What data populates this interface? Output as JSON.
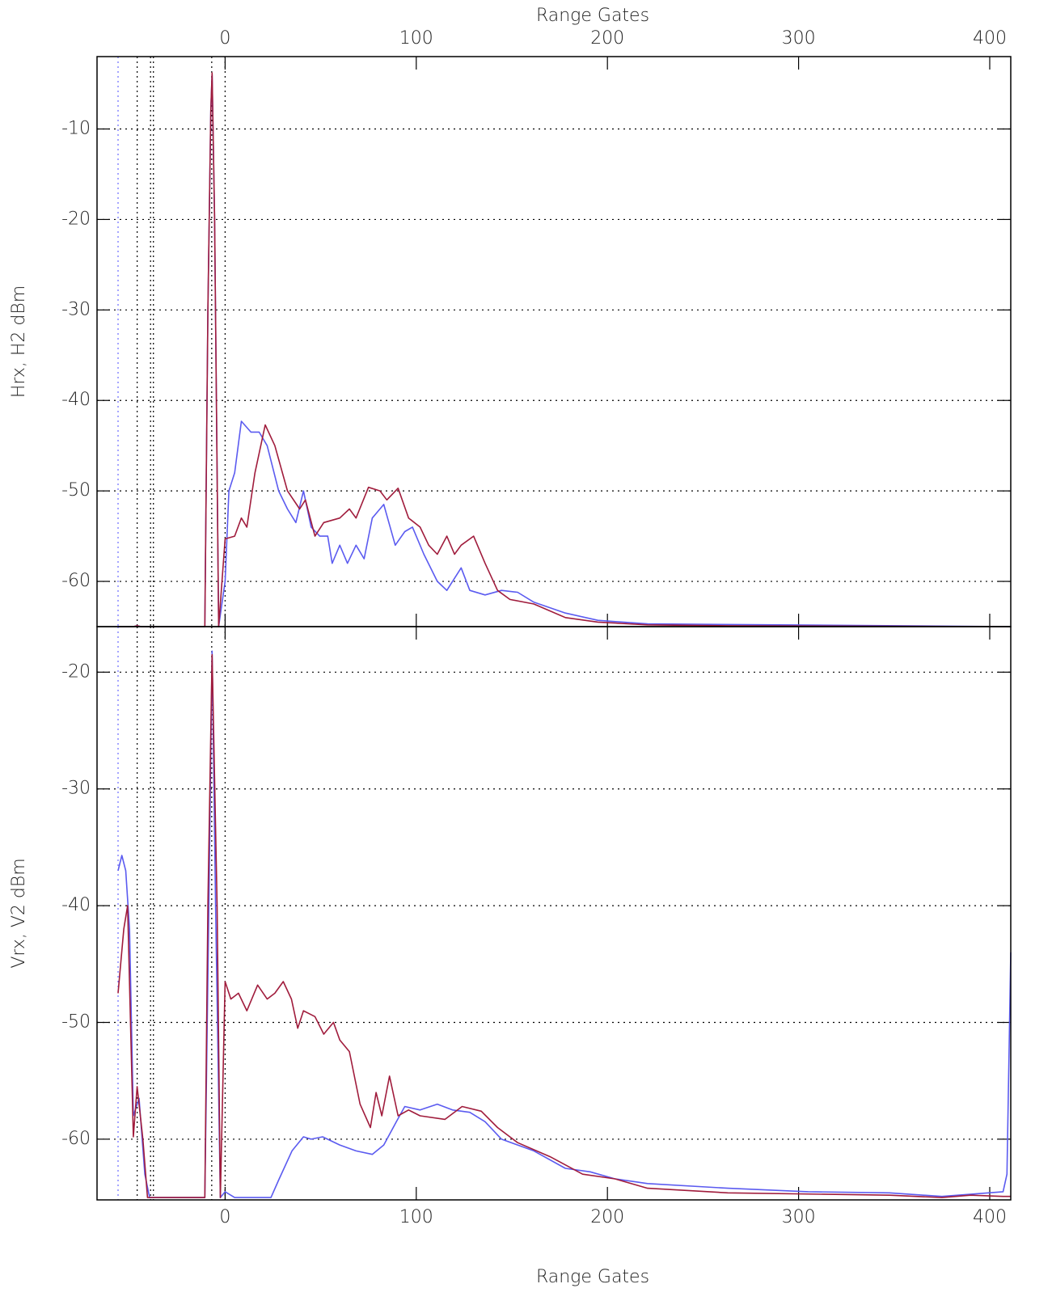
{
  "chart_data": [
    {
      "type": "line",
      "xlabel": "Range Gates",
      "ylabel": "Hrx, H2 dBm",
      "xaxis_side": "top",
      "xlim": [
        -67,
        411
      ],
      "xticks": [
        0,
        100,
        200,
        300,
        400
      ],
      "ylim": [
        -65,
        -2
      ],
      "yticks": [
        -60,
        -50,
        -40,
        -30,
        -20,
        -10
      ],
      "grid": true,
      "vlines": [
        {
          "x": -56,
          "color": "#6a6aff"
        },
        {
          "x": -46,
          "color": "#000000"
        },
        {
          "x": -39,
          "color": "#000000"
        },
        {
          "x": -37.5,
          "color": "#000000"
        },
        {
          "x": -7,
          "color": "#000000"
        },
        {
          "x": 0,
          "color": "#000000"
        }
      ],
      "series": [
        {
          "color": "#5b5bf0",
          "x": [
            -56,
            -48,
            -46,
            -44,
            -10.6,
            -9,
            -7.5,
            -6.8,
            -5.5,
            -3.4,
            0,
            2,
            5,
            8.5,
            13.5,
            17.8,
            22,
            28,
            32.6,
            37,
            41,
            45,
            49.5,
            53.7,
            56,
            60,
            64,
            68.5,
            72.7,
            77,
            83,
            89,
            94,
            98,
            104,
            111,
            116,
            123.5,
            128,
            136,
            144.6,
            153,
            161.5,
            178,
            195,
            221,
            411
          ],
          "values": [
            -65,
            -65,
            -64.9,
            -65,
            -65,
            -30,
            -8,
            -4,
            -20,
            -65,
            -60,
            -50,
            -48,
            -42.3,
            -43.5,
            -43.5,
            -45,
            -50,
            -52,
            -53.5,
            -50,
            -54,
            -55,
            -55,
            -58,
            -56,
            -58,
            -56,
            -57.5,
            -53,
            -51.5,
            -56,
            -54.5,
            -54,
            -57,
            -60,
            -61,
            -58.5,
            -61,
            -61.5,
            -61,
            -61.2,
            -62.3,
            -63.5,
            -64.3,
            -64.7,
            -65
          ]
        },
        {
          "color": "#a01c3c",
          "x": [
            -56,
            -48,
            -46,
            -44,
            -10.6,
            -9,
            -7.5,
            -6.8,
            -5.5,
            -3.4,
            0,
            5,
            8.5,
            11.4,
            15.6,
            21,
            26,
            32.6,
            39,
            42,
            47,
            51.6,
            60,
            65,
            68.5,
            75,
            81,
            84.6,
            90.5,
            96,
            102,
            106.5,
            111,
            116,
            120,
            123.5,
            130,
            136,
            142.5,
            149,
            161.5,
            178,
            195,
            221,
            263,
            411
          ],
          "values": [
            -65,
            -65,
            -64.9,
            -65,
            -65,
            -30,
            -8,
            -3.8,
            -20,
            -65,
            -55.3,
            -55,
            -53,
            -54,
            -48,
            -42.7,
            -45,
            -50,
            -52,
            -51,
            -55,
            -53.5,
            -53,
            -52,
            -53,
            -49.6,
            -50,
            -51,
            -49.7,
            -53,
            -54,
            -56,
            -57,
            -55,
            -57,
            -56,
            -55,
            -58,
            -61,
            -62,
            -62.5,
            -64,
            -64.5,
            -64.8,
            -64.9,
            -65
          ]
        }
      ]
    },
    {
      "type": "line",
      "xlabel": "Range Gates",
      "ylabel": "Vrx, V2 dBm",
      "xaxis_side": "bottom",
      "xlim": [
        -67,
        411
      ],
      "xticks": [
        0,
        100,
        200,
        300,
        400
      ],
      "ylim": [
        -65.2,
        -16.1
      ],
      "yticks": [
        -60,
        -50,
        -40,
        -30,
        -20
      ],
      "grid": true,
      "vlines": [
        {
          "x": -56,
          "color": "#6a6aff"
        },
        {
          "x": -46,
          "color": "#000000"
        },
        {
          "x": -39,
          "color": "#000000"
        },
        {
          "x": -37.5,
          "color": "#000000"
        },
        {
          "x": -7,
          "color": "#000000"
        },
        {
          "x": 0,
          "color": "#000000"
        }
      ],
      "series": [
        {
          "color": "#5b5bf0",
          "x": [
            -56,
            -54,
            -52,
            -50,
            -48,
            -45,
            -42,
            -39.5,
            -10.6,
            -8.5,
            -6.8,
            -5,
            -2.5,
            0,
            5,
            24,
            28,
            35,
            41,
            45,
            51,
            60,
            68.5,
            77,
            83,
            89.6,
            94,
            102,
            111,
            119,
            128,
            136,
            144.6,
            161.5,
            178,
            191,
            204,
            221,
            263,
            305,
            347.6,
            375,
            407,
            409,
            411
          ],
          "values": [
            -37,
            -35.7,
            -37,
            -42,
            -58,
            -56.5,
            -63,
            -65,
            -65,
            -40,
            -18.2,
            -40,
            -65,
            -64.5,
            -65,
            -65,
            -63.5,
            -61,
            -59.8,
            -60,
            -59.8,
            -60.5,
            -61,
            -61.3,
            -60.5,
            -58.5,
            -57.2,
            -57.5,
            -57,
            -57.5,
            -57.7,
            -58.5,
            -60,
            -61,
            -62.5,
            -62.8,
            -63.4,
            -63.8,
            -64.2,
            -64.5,
            -64.6,
            -64.9,
            -64.5,
            -63,
            -44
          ]
        },
        {
          "color": "#a01c3c",
          "x": [
            -56,
            -53,
            -51,
            -48,
            -46,
            -43,
            -40.6,
            -10.6,
            -9,
            -6.8,
            -4.2,
            -2.5,
            0,
            3,
            7,
            11.4,
            17,
            22,
            26,
            30.4,
            34.7,
            38,
            41,
            47,
            51.6,
            56.7,
            60,
            65,
            70.6,
            76,
            79,
            82,
            86,
            90.5,
            96,
            102,
            115,
            124,
            134,
            142.5,
            153,
            170,
            187,
            204,
            221,
            263,
            347.6,
            375,
            390,
            407,
            411
          ],
          "values": [
            -47.5,
            -42,
            -40,
            -59.8,
            -55.5,
            -60,
            -65,
            -65,
            -40,
            -18.5,
            -40,
            -65,
            -46.5,
            -48,
            -47.5,
            -49,
            -46.8,
            -48,
            -47.5,
            -46.5,
            -48,
            -50.5,
            -49,
            -49.5,
            -51,
            -50,
            -51.5,
            -52.5,
            -57,
            -59,
            -56,
            -58,
            -54.6,
            -58,
            -57.5,
            -58,
            -58.3,
            -57.2,
            -57.6,
            -59,
            -60.3,
            -61.5,
            -63,
            -63.4,
            -64.2,
            -64.6,
            -64.8,
            -65,
            -64.8,
            -64.9,
            -64.9
          ]
        }
      ]
    }
  ]
}
